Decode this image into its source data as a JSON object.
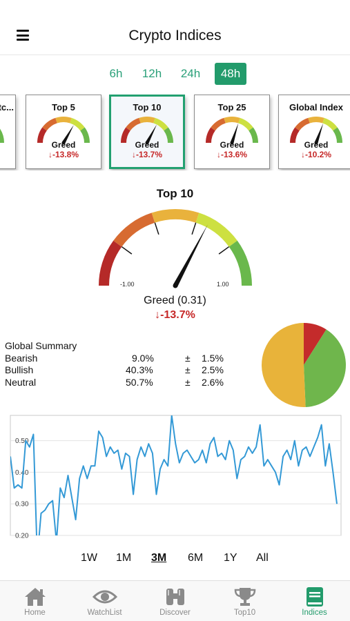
{
  "header": {
    "title": "Crypto Indices",
    "menu_icon": "hamburger-menu-icon"
  },
  "timeframes": {
    "items": [
      "6h",
      "12h",
      "24h",
      "48h"
    ],
    "selected": "48h"
  },
  "cards": [
    {
      "title": "Bitc...",
      "label": "",
      "change": "",
      "level": 0.3
    },
    {
      "title": "Top 5",
      "label": "Greed",
      "change": "↓-13.8%",
      "level": 0.33
    },
    {
      "title": "Top 10",
      "label": "Greed",
      "change": "↓-13.7%",
      "level": 0.31
    },
    {
      "title": "Top 25",
      "label": "Greed",
      "change": "↓-13.6%",
      "level": 0.2
    },
    {
      "title": "Global Index",
      "label": "Greed",
      "change": "↓-10.2%",
      "level": 0.22
    }
  ],
  "main_gauge": {
    "title": "Top 10",
    "min_label": "-1.00",
    "max_label": "1.00",
    "value": 0.31,
    "label": "Greed (0.31)",
    "change": "↓-13.7%",
    "colors": [
      "#b52a28",
      "#d76b31",
      "#e9b23c",
      "#cde041",
      "#6ab84c"
    ]
  },
  "summary": {
    "heading": "Global Summary",
    "rows": [
      {
        "name": "Bearish",
        "value": "9.0%",
        "pm": "±",
        "err": "1.5%"
      },
      {
        "name": "Bullish",
        "value": "40.3%",
        "pm": "±",
        "err": "2.5%"
      },
      {
        "name": "Neutral",
        "value": "50.7%",
        "pm": "±",
        "err": "2.6%"
      }
    ]
  },
  "pie": {
    "slices": [
      {
        "name": "Bearish",
        "value": 9.0,
        "color": "#c42b2b"
      },
      {
        "name": "Bullish",
        "value": 40.3,
        "color": "#6fb64c"
      },
      {
        "name": "Neutral",
        "value": 50.7,
        "color": "#e8b33a"
      }
    ]
  },
  "chart_data": {
    "type": "line",
    "ylim": [
      0.2,
      0.58
    ],
    "yticks": [
      "0.50",
      "0.40",
      "0.30",
      "0.20"
    ],
    "ytick_values": [
      0.5,
      0.4,
      0.3,
      0.2
    ],
    "grid": true,
    "color": "#3399d6",
    "values": [
      0.45,
      0.35,
      0.36,
      0.35,
      0.5,
      0.48,
      0.52,
      0.13,
      0.27,
      0.28,
      0.3,
      0.31,
      0.18,
      0.35,
      0.32,
      0.39,
      0.32,
      0.25,
      0.38,
      0.42,
      0.38,
      0.42,
      0.42,
      0.53,
      0.51,
      0.45,
      0.48,
      0.46,
      0.47,
      0.41,
      0.46,
      0.45,
      0.33,
      0.44,
      0.48,
      0.45,
      0.49,
      0.46,
      0.33,
      0.41,
      0.44,
      0.42,
      0.58,
      0.49,
      0.43,
      0.46,
      0.47,
      0.45,
      0.43,
      0.44,
      0.47,
      0.43,
      0.49,
      0.51,
      0.45,
      0.46,
      0.44,
      0.5,
      0.47,
      0.38,
      0.44,
      0.45,
      0.48,
      0.46,
      0.48,
      0.55,
      0.42,
      0.44,
      0.42,
      0.4,
      0.36,
      0.45,
      0.47,
      0.44,
      0.5,
      0.42,
      0.47,
      0.48,
      0.45,
      0.48,
      0.51,
      0.55,
      0.42,
      0.49,
      0.4,
      0.3
    ]
  },
  "ranges": {
    "items": [
      "1W",
      "1M",
      "3M",
      "6M",
      "1Y",
      "All"
    ],
    "selected": "3M"
  },
  "tabs": [
    {
      "label": "Home",
      "icon": "home-icon"
    },
    {
      "label": "WatchList",
      "icon": "eye-icon"
    },
    {
      "label": "Discover",
      "icon": "binoculars-icon"
    },
    {
      "label": "Top10",
      "icon": "trophy-icon"
    },
    {
      "label": "Indices",
      "icon": "book-icon"
    }
  ],
  "colors": {
    "accent": "#229b6b",
    "negative": "#c62828",
    "tab_inactive": "#8a8a8a"
  }
}
